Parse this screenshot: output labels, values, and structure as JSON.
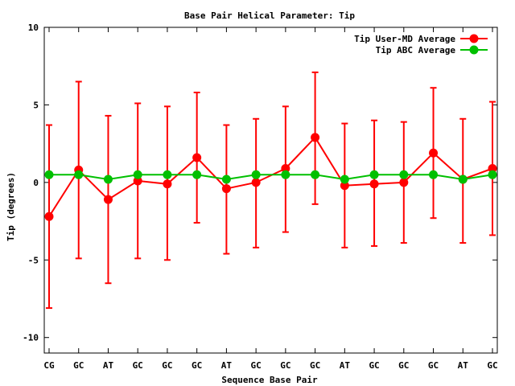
{
  "chart_data": {
    "type": "line",
    "title": "Base Pair Helical Parameter: Tip",
    "xlabel": "Sequence Base Pair",
    "ylabel": "Tip (degrees)",
    "categories": [
      "CG",
      "GC",
      "AT",
      "GC",
      "GC",
      "GC",
      "AT",
      "GC",
      "GC",
      "GC",
      "AT",
      "GC",
      "GC",
      "GC",
      "AT",
      "GC"
    ],
    "ylim": [
      -11,
      10
    ],
    "yticks": [
      10,
      5,
      0,
      -5,
      -10
    ],
    "legend_position": "top-right",
    "grid": false,
    "series": [
      {
        "name": "Tip User-MD Average",
        "color": "#ff0000",
        "values": [
          -2.2,
          0.8,
          -1.1,
          0.1,
          -0.1,
          1.6,
          -0.4,
          0.0,
          0.9,
          2.9,
          -0.2,
          -0.1,
          0.0,
          1.9,
          0.2,
          0.9
        ],
        "error_low": [
          -8.1,
          -4.9,
          -6.5,
          -4.9,
          -5.0,
          -2.6,
          -4.6,
          -4.2,
          -3.2,
          -1.4,
          -4.2,
          -4.1,
          -3.9,
          -2.3,
          -3.9,
          -3.4
        ],
        "error_high": [
          3.7,
          6.5,
          4.3,
          5.1,
          4.9,
          5.8,
          3.7,
          4.1,
          4.9,
          7.1,
          3.8,
          4.0,
          3.9,
          6.1,
          4.1,
          5.2
        ]
      },
      {
        "name": "Tip ABC Average",
        "color": "#00c000",
        "values": [
          0.5,
          0.5,
          0.2,
          0.5,
          0.5,
          0.5,
          0.2,
          0.5,
          0.5,
          0.5,
          0.2,
          0.5,
          0.5,
          0.5,
          0.2,
          0.5
        ]
      }
    ]
  }
}
